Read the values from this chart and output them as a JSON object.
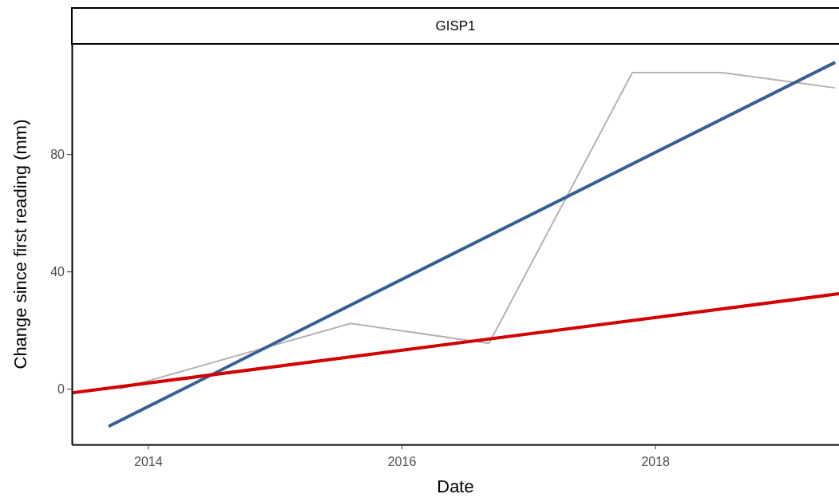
{
  "chart_data": {
    "type": "line",
    "title": "GISP1",
    "xlabel": "Date",
    "ylabel": "Change since first reading (mm)",
    "xlim": [
      2013.4,
      2019.45
    ],
    "xticks": [
      2014,
      2016,
      2018
    ],
    "ylim": [
      -19,
      117.6
    ],
    "yticks": [
      0,
      40,
      80
    ],
    "grid": false,
    "marker": "none",
    "line_style": "solid",
    "series": [
      {
        "color": "#b3b3b3",
        "x": [
          2013.78,
          2015.6,
          2016.69,
          2017.82,
          2018.53,
          2019.42
        ],
        "values": [
          0,
          22.3,
          15.5,
          107.8,
          107.8,
          102.6
        ]
      },
      {
        "color": "#35618f",
        "x": [
          2013.69,
          2019.42
        ],
        "values": [
          -12.8,
          111.3
        ]
      },
      {
        "color": "#d40000",
        "x": [
          2013.4,
          2019.45
        ],
        "values": [
          -1.4,
          32.4
        ]
      }
    ]
  }
}
